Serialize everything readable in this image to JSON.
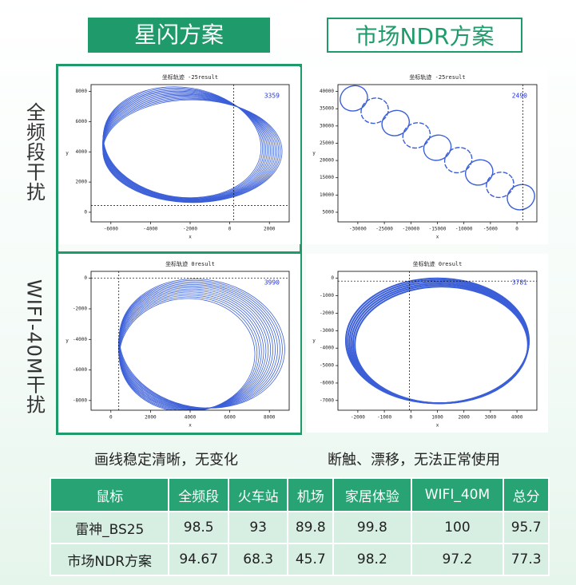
{
  "headers": [
    "星闪方案",
    "市场NDR方案"
  ],
  "row_labels": [
    "全频段干扰",
    "WIFI-40M干扰"
  ],
  "plots": [
    {
      "title": "坐标轨迹 -25result",
      "count": 3359,
      "xlabel": "x",
      "ylabel": "y",
      "xticks": [
        -6000,
        -4000,
        -2000,
        0,
        2000
      ],
      "yticks": [
        8000,
        6000,
        4000,
        2000,
        0
      ]
    },
    {
      "title": "坐标轨迹 -25result",
      "count": 2490,
      "xlabel": "x",
      "ylabel": "y",
      "xticks": [
        -30000,
        -25000,
        -20000,
        -15000,
        -10000,
        -5000,
        0
      ],
      "yticks": [
        40000,
        35000,
        30000,
        25000,
        20000,
        15000,
        10000,
        5000
      ]
    },
    {
      "title": "坐标轨迹 0result",
      "count": 3990,
      "xlabel": "x",
      "ylabel": "y",
      "xticks": [
        0,
        2000,
        4000,
        6000,
        8000
      ],
      "yticks": [
        0,
        -2000,
        -4000,
        -6000,
        -8000
      ]
    },
    {
      "title": "坐标轨迹 0result",
      "count": 3781,
      "xlabel": "x",
      "ylabel": "y",
      "xticks": [
        -2000,
        -1000,
        0,
        1000,
        2000,
        3000,
        4000
      ],
      "yticks": [
        0,
        -1000,
        -2000,
        -3000,
        -4000,
        -5000,
        -6000,
        -7000
      ]
    }
  ],
  "captions": [
    "画线稳定清晰，无变化",
    "断触、漂移，无法正常使用"
  ],
  "table": {
    "columns": [
      "鼠标",
      "全频段",
      "火车站",
      "机场",
      "家居体验",
      "WIFI_40M",
      "总分"
    ],
    "rows": [
      [
        "雷神_BS25",
        98.5,
        93,
        89.8,
        99.8,
        100,
        95.7
      ],
      [
        "市场NDR方案",
        94.67,
        68.3,
        45.7,
        98.2,
        97.2,
        77.3
      ]
    ]
  }
}
